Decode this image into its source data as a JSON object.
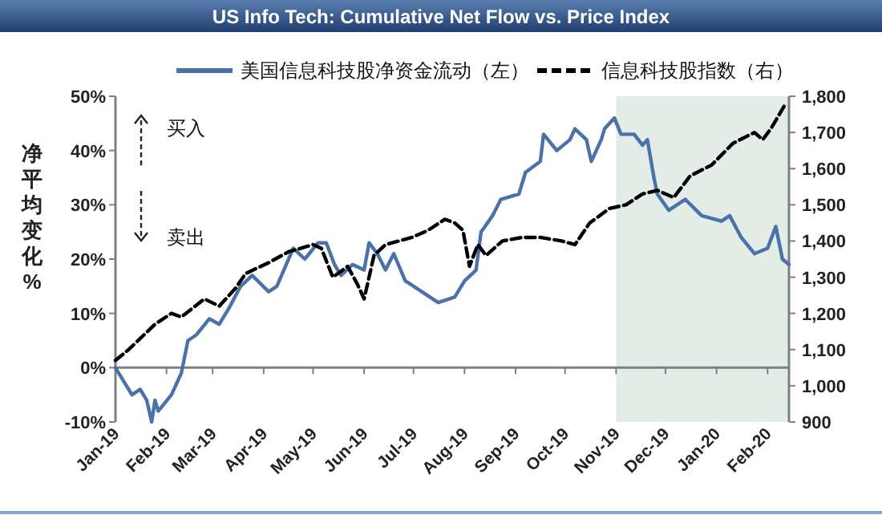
{
  "chart_data": {
    "type": "line",
    "title": "US Info Tech: Cumulative Net Flow vs. Price Index",
    "ylabel": "净平均变化%",
    "xlim": [
      "2019-01-01",
      "2020-02-14"
    ],
    "xticks": [
      {
        "value": "2019-01-01",
        "label": "Jan-19"
      },
      {
        "value": "2019-02-01",
        "label": "Feb-19"
      },
      {
        "value": "2019-03-01",
        "label": "Mar-19"
      },
      {
        "value": "2019-04-01",
        "label": "Apr-19"
      },
      {
        "value": "2019-05-01",
        "label": "May-19"
      },
      {
        "value": "2019-06-01",
        "label": "Jun-19"
      },
      {
        "value": "2019-07-01",
        "label": "Jul-19"
      },
      {
        "value": "2019-08-01",
        "label": "Aug-19"
      },
      {
        "value": "2019-09-01",
        "label": "Sep-19"
      },
      {
        "value": "2019-10-01",
        "label": "Oct-19"
      },
      {
        "value": "2019-11-01",
        "label": "Nov-19"
      },
      {
        "value": "2019-12-01",
        "label": "Dec-19"
      },
      {
        "value": "2020-01-01",
        "label": "Jan-20"
      },
      {
        "value": "2020-02-01",
        "label": "Feb-20"
      }
    ],
    "ylim": [
      -10,
      50
    ],
    "yticks": [
      {
        "value": -10,
        "label": "-10%"
      },
      {
        "value": 0,
        "label": "0%"
      },
      {
        "value": 10,
        "label": "10%"
      },
      {
        "value": 20,
        "label": "20%"
      },
      {
        "value": 30,
        "label": "30%"
      },
      {
        "value": 40,
        "label": "40%"
      },
      {
        "value": 50,
        "label": "50%"
      }
    ],
    "y2lim": [
      900,
      1800
    ],
    "y2ticks": [
      {
        "value": 900,
        "label": "900"
      },
      {
        "value": 1000,
        "label": "1,000"
      },
      {
        "value": 1100,
        "label": "1,100"
      },
      {
        "value": 1200,
        "label": "1,200"
      },
      {
        "value": 1300,
        "label": "1,300"
      },
      {
        "value": 1400,
        "label": "1,400"
      },
      {
        "value": 1500,
        "label": "1,500"
      },
      {
        "value": 1600,
        "label": "1,600"
      },
      {
        "value": 1700,
        "label": "1,700"
      },
      {
        "value": 1800,
        "label": "1,800"
      }
    ],
    "legend": "top",
    "bands": [
      {
        "axis": "x",
        "from": "2019-11-01",
        "to": "2020-02-14",
        "color": "#e4ece8"
      }
    ],
    "annotations": [
      "买入",
      "卖出"
    ],
    "series": [
      {
        "name": "美国信息科技股净资金流动（左）",
        "color": "#4a72a8",
        "line_style": "solid",
        "x": [
          "2019-01-01",
          "2019-01-07",
          "2019-01-11",
          "2019-01-16",
          "2019-01-20",
          "2019-01-23",
          "2019-01-25",
          "2019-01-27",
          "2019-02-04",
          "2019-02-10",
          "2019-02-14",
          "2019-02-19",
          "2019-02-27",
          "2019-03-05",
          "2019-03-11",
          "2019-03-18",
          "2019-03-25",
          "2019-04-04",
          "2019-04-09",
          "2019-04-19",
          "2019-04-26",
          "2019-05-04",
          "2019-05-09",
          "2019-05-14",
          "2019-05-18",
          "2019-05-25",
          "2019-06-01",
          "2019-06-04",
          "2019-06-09",
          "2019-06-14",
          "2019-06-19",
          "2019-06-26",
          "2019-07-06",
          "2019-07-16",
          "2019-07-26",
          "2019-08-01",
          "2019-08-08",
          "2019-08-11",
          "2019-08-18",
          "2019-08-23",
          "2019-09-03",
          "2019-09-07",
          "2019-09-16",
          "2019-09-18",
          "2019-09-26",
          "2019-10-04",
          "2019-10-07",
          "2019-10-14",
          "2019-10-17",
          "2019-10-23",
          "2019-10-25",
          "2019-10-31",
          "2019-11-04",
          "2019-11-12",
          "2019-11-17",
          "2019-11-20",
          "2019-11-24",
          "2019-11-26",
          "2019-12-03",
          "2019-12-13",
          "2019-12-23",
          "2020-01-04",
          "2020-01-09",
          "2020-01-16",
          "2020-01-24",
          "2020-02-01",
          "2020-02-06",
          "2020-02-10",
          "2020-02-14"
        ],
        "values": [
          0,
          -3,
          -5,
          -4,
          -6,
          -10,
          -6,
          -8,
          -5,
          -1,
          5,
          6,
          9,
          8,
          11,
          15,
          17,
          14,
          15,
          22,
          20,
          23,
          23,
          19,
          17,
          19,
          18,
          23,
          21,
          18,
          21,
          16,
          14,
          12,
          13,
          16,
          18,
          25,
          28,
          31,
          32,
          36,
          38,
          43,
          40,
          42,
          44,
          42,
          38,
          42,
          44,
          46,
          43,
          43,
          41,
          42,
          35,
          32,
          29,
          31,
          28,
          27,
          28,
          24,
          21,
          22,
          26,
          20,
          19
        ]
      },
      {
        "name": "信息科技股指数（右）",
        "color": "#000000",
        "axis": "y2",
        "line_style": "dashed",
        "x": [
          "2019-01-01",
          "2019-01-09",
          "2019-01-25",
          "2019-02-04",
          "2019-02-10",
          "2019-02-24",
          "2019-03-05",
          "2019-03-15",
          "2019-03-21",
          "2019-04-04",
          "2019-04-16",
          "2019-05-01",
          "2019-05-06",
          "2019-05-13",
          "2019-05-22",
          "2019-05-28",
          "2019-06-01",
          "2019-06-07",
          "2019-06-14",
          "2019-06-30",
          "2019-07-10",
          "2019-07-20",
          "2019-07-26",
          "2019-07-31",
          "2019-08-04",
          "2019-08-09",
          "2019-08-14",
          "2019-08-24",
          "2019-09-05",
          "2019-09-16",
          "2019-09-29",
          "2019-10-07",
          "2019-10-16",
          "2019-10-28",
          "2019-11-07",
          "2019-11-17",
          "2019-11-26",
          "2019-12-06",
          "2019-12-16",
          "2019-12-29",
          "2020-01-11",
          "2020-01-24",
          "2020-01-29",
          "2020-02-03",
          "2020-02-12"
        ],
        "values": [
          1070,
          1100,
          1170,
          1200,
          1190,
          1240,
          1220,
          1270,
          1310,
          1340,
          1370,
          1390,
          1380,
          1300,
          1330,
          1280,
          1240,
          1360,
          1390,
          1410,
          1430,
          1460,
          1450,
          1430,
          1330,
          1390,
          1360,
          1400,
          1410,
          1410,
          1400,
          1390,
          1450,
          1490,
          1500,
          1530,
          1540,
          1520,
          1580,
          1610,
          1670,
          1700,
          1680,
          1710,
          1780
        ]
      }
    ]
  }
}
